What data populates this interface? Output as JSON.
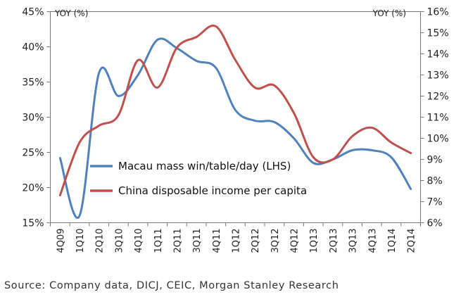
{
  "chart_data": {
    "type": "line",
    "categories": [
      "4Q09",
      "1Q10",
      "2Q10",
      "3Q10",
      "4Q10",
      "1Q11",
      "2Q11",
      "3Q11",
      "4Q11",
      "1Q12",
      "2Q12",
      "3Q12",
      "4Q12",
      "1Q13",
      "2Q13",
      "3Q13",
      "4Q13",
      "1Q14",
      "2Q14"
    ],
    "left_axis": {
      "label": "YOY (%)",
      "ylim": [
        15,
        45
      ],
      "ticks": [
        "15%",
        "20%",
        "25%",
        "30%",
        "35%",
        "40%",
        "45%"
      ],
      "tick_values": [
        15,
        20,
        25,
        30,
        35,
        40,
        45
      ]
    },
    "right_axis": {
      "label": "YOY (%)",
      "ylim": [
        6,
        16
      ],
      "ticks": [
        "6%",
        "7%",
        "8%",
        "9%",
        "10%",
        "11%",
        "12%",
        "13%",
        "14%",
        "15%",
        "16%"
      ],
      "tick_values": [
        6,
        7,
        8,
        9,
        10,
        11,
        12,
        13,
        14,
        15,
        16
      ]
    },
    "series": [
      {
        "name": "Macau mass win/table/day (LHS)",
        "axis": "left",
        "color": "#4F81BD",
        "values": [
          24.2,
          16.0,
          36.3,
          33.0,
          36.0,
          41.0,
          39.8,
          38.0,
          37.0,
          31.0,
          29.5,
          29.3,
          27.0,
          23.5,
          24.0,
          25.3,
          25.3,
          24.3,
          19.8
        ]
      },
      {
        "name": "China disposable income per capita",
        "axis": "right",
        "color": "#C0504D",
        "values": [
          7.3,
          9.8,
          10.6,
          11.1,
          13.7,
          12.4,
          14.3,
          14.8,
          15.3,
          13.7,
          12.4,
          12.5,
          11.2,
          9.1,
          9.0,
          10.1,
          10.5,
          9.8,
          9.3
        ]
      }
    ],
    "grid": false,
    "legend_position": "center-left"
  },
  "source": "Source: Company data, DICJ, CEIC, Morgan Stanley Research"
}
